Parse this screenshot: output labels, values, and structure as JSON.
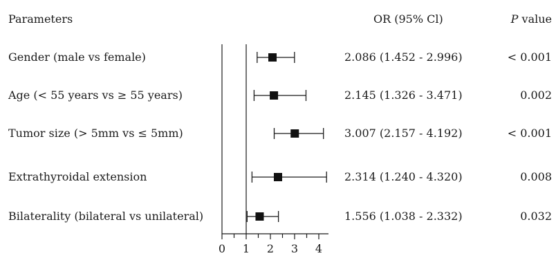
{
  "headers": {
    "parameters": "Parameters",
    "or": "OR (95% Cl)",
    "p_italic": "P",
    "p_rest": " value"
  },
  "chart_data": {
    "type": "forest",
    "xlim": [
      0,
      4.4
    ],
    "reference_line": 1,
    "xticks": [
      0,
      1,
      2,
      3,
      4
    ],
    "rows": [
      {
        "label": "Gender (male vs female)",
        "or": 2.086,
        "lower": 1.452,
        "upper": 2.996,
        "or_text": "2.086 (1.452 - 2.996)",
        "p": "< 0.001"
      },
      {
        "label": "Age (< 55 years vs ≥ 55 years)",
        "or": 2.145,
        "lower": 1.326,
        "upper": 3.471,
        "or_text": "2.145 (1.326 - 3.471)",
        "p": "0.002"
      },
      {
        "label": "Tumor size (> 5mm vs ≤ 5mm)",
        "or": 3.007,
        "lower": 2.157,
        "upper": 4.192,
        "or_text": "3.007 (2.157 - 4.192)",
        "p": "< 0.001"
      },
      {
        "label": "Extrathyroidal extension",
        "or": 2.314,
        "lower": 1.24,
        "upper": 4.32,
        "or_text": "2.314 (1.240 - 4.320)",
        "p": "0.008"
      },
      {
        "label": "Bilaterality (bilateral vs unilateral)",
        "or": 1.556,
        "lower": 1.038,
        "upper": 2.332,
        "or_text": "1.556 (1.038 - 2.332)",
        "p": "0.032"
      }
    ]
  }
}
